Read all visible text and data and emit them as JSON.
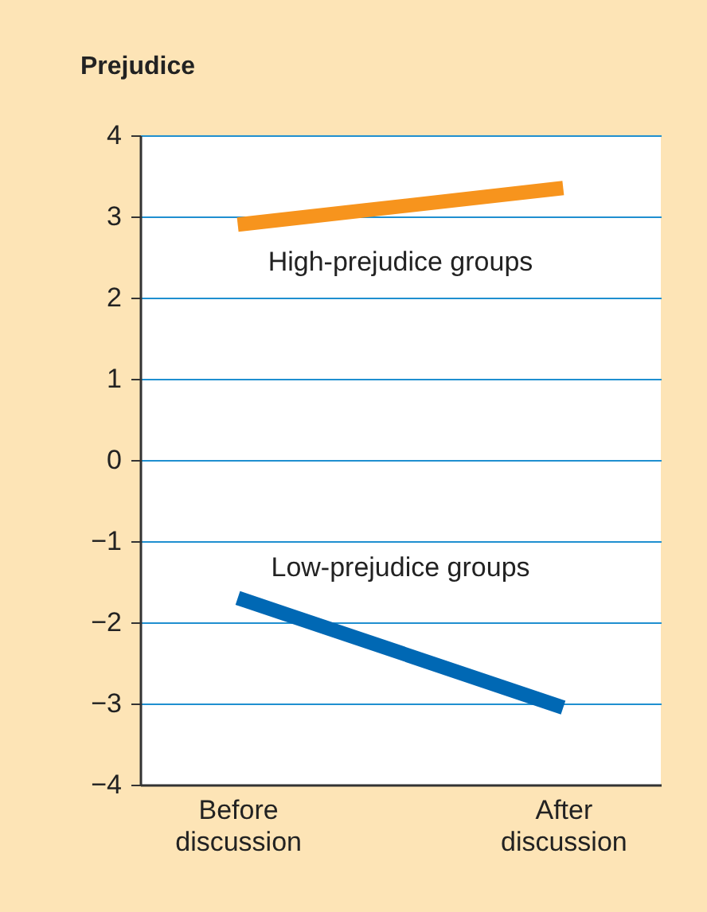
{
  "chart_data": {
    "type": "line",
    "ylabel": "Prejudice",
    "categories": [
      "Before discussion",
      "After discussion"
    ],
    "series": [
      {
        "name": "High-prejudice groups",
        "color": "#f7941d",
        "values": [
          2.9,
          3.35
        ]
      },
      {
        "name": "Low-prejudice groups",
        "color": "#0068b4",
        "values": [
          -1.7,
          -3.05
        ]
      }
    ],
    "ylim": [
      -4,
      4
    ],
    "yticks": [
      {
        "value": -4,
        "label": "−4"
      },
      {
        "value": -3,
        "label": "−3"
      },
      {
        "value": -2,
        "label": "−2"
      },
      {
        "value": -1,
        "label": "−1"
      },
      0,
      1,
      2,
      3,
      4
    ],
    "grid": "y",
    "legend": false,
    "marker": "none",
    "line_style": "solid"
  }
}
